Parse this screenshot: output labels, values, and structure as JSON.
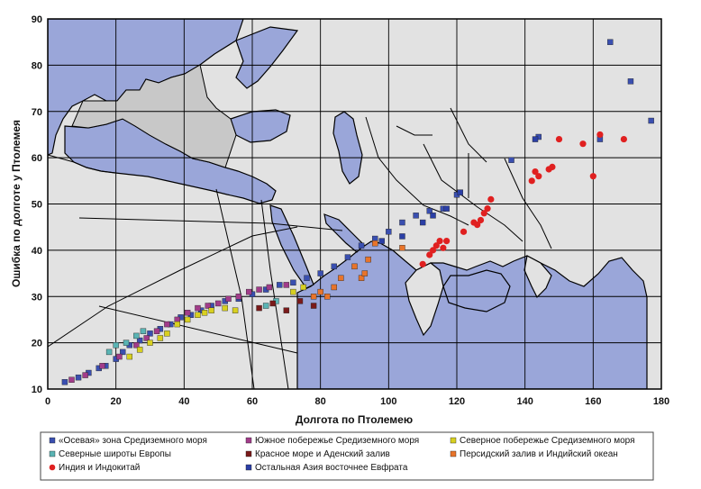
{
  "chart_data": {
    "type": "scatter",
    "title": "",
    "xlabel": "Долгота по Птолемею",
    "ylabel": "Ошибка по долготе у Птолемея",
    "xlim": [
      0,
      180
    ],
    "ylim": [
      10,
      90
    ],
    "xticks": [
      0,
      20,
      40,
      60,
      80,
      100,
      120,
      140,
      160,
      180
    ],
    "yticks": [
      10,
      20,
      30,
      40,
      50,
      60,
      70,
      80,
      90
    ],
    "grid": true,
    "legend_position": "bottom",
    "background": "map of the Mediterranean, Near East and Asia",
    "colors": {
      "land": "#e2e2e2",
      "land_shaded": "#c8c8c8",
      "water": "#9aa6d9",
      "grid": "#000000"
    },
    "series": [
      {
        "name": "«Осевая» зона Средиземного моря",
        "marker": "square",
        "color": "#3a4fb0",
        "points": [
          [
            5,
            11.5
          ],
          [
            9,
            12.5
          ],
          [
            12,
            13.5
          ],
          [
            15,
            14.5
          ],
          [
            17,
            15
          ],
          [
            20,
            16.5
          ],
          [
            22,
            18
          ],
          [
            24,
            19.5
          ],
          [
            27,
            20.5
          ],
          [
            30,
            22
          ],
          [
            33,
            23
          ],
          [
            36,
            24
          ],
          [
            39,
            25.5
          ],
          [
            42,
            26
          ],
          [
            45,
            27
          ],
          [
            48,
            28
          ],
          [
            52,
            29
          ],
          [
            56,
            29.5
          ],
          [
            60,
            30.5
          ],
          [
            64,
            31.5
          ],
          [
            68,
            32.5
          ],
          [
            72,
            33
          ],
          [
            76,
            34
          ],
          [
            80,
            35
          ],
          [
            84,
            36.5
          ],
          [
            88,
            38.5
          ],
          [
            92,
            41
          ],
          [
            96,
            42.5
          ],
          [
            100,
            44
          ],
          [
            104,
            46
          ],
          [
            108,
            47.5
          ],
          [
            112,
            48.5
          ],
          [
            116,
            49
          ],
          [
            120,
            52
          ],
          [
            136,
            59.5
          ],
          [
            144,
            64.5
          ],
          [
            162,
            64
          ],
          [
            165,
            85
          ],
          [
            171,
            76.5
          ],
          [
            177,
            68
          ]
        ]
      },
      {
        "name": "Южное побережье Средиземного моря",
        "marker": "square",
        "color": "#a23c8a",
        "points": [
          [
            7,
            12
          ],
          [
            11,
            13
          ],
          [
            16,
            15
          ],
          [
            21,
            17
          ],
          [
            26,
            19.5
          ],
          [
            29,
            21
          ],
          [
            32,
            22.5
          ],
          [
            35,
            24
          ],
          [
            38,
            25
          ],
          [
            41,
            26.5
          ],
          [
            44,
            27.5
          ],
          [
            47,
            28
          ],
          [
            50,
            28.5
          ],
          [
            53,
            29.5
          ],
          [
            56,
            30
          ],
          [
            59,
            31
          ],
          [
            62,
            31.5
          ],
          [
            65,
            32
          ],
          [
            70,
            32.5
          ]
        ]
      },
      {
        "name": "Северное побережье Средиземного моря",
        "marker": "square",
        "color": "#d8d020",
        "points": [
          [
            24,
            17
          ],
          [
            27,
            18.5
          ],
          [
            30,
            20
          ],
          [
            33,
            21
          ],
          [
            35,
            22
          ],
          [
            38,
            24
          ],
          [
            41,
            25
          ],
          [
            44,
            26
          ],
          [
            46,
            26.5
          ],
          [
            48,
            27
          ],
          [
            52,
            27.5
          ],
          [
            55,
            27
          ],
          [
            72,
            31
          ],
          [
            75,
            32
          ]
        ]
      },
      {
        "name": "Северные широты Европы",
        "marker": "square",
        "color": "#5ab4b4",
        "points": [
          [
            18,
            18
          ],
          [
            20,
            19.5
          ],
          [
            23,
            20
          ],
          [
            26,
            21.5
          ],
          [
            28,
            22.5
          ],
          [
            64,
            28
          ],
          [
            67,
            29
          ]
        ]
      },
      {
        "name": "Красное море и Аденский залив",
        "marker": "square",
        "color": "#7a1a1a",
        "points": [
          [
            62,
            27.5
          ],
          [
            66,
            28.5
          ],
          [
            70,
            27
          ],
          [
            74,
            29
          ],
          [
            78,
            28
          ]
        ]
      },
      {
        "name": "Персидский залив и Индийский океан",
        "marker": "square",
        "color": "#e8742a",
        "points": [
          [
            78,
            30
          ],
          [
            80,
            31
          ],
          [
            82,
            30
          ],
          [
            84,
            32
          ],
          [
            86,
            34
          ],
          [
            90,
            36.5
          ],
          [
            92,
            34
          ],
          [
            93,
            35
          ],
          [
            94,
            38
          ],
          [
            96,
            41.5
          ],
          [
            104,
            40.5
          ]
        ]
      },
      {
        "name": "Индия и Индокитай",
        "marker": "circle",
        "color": "#e02020",
        "points": [
          [
            110,
            37
          ],
          [
            112,
            39
          ],
          [
            113,
            40
          ],
          [
            114,
            41
          ],
          [
            115,
            42
          ],
          [
            116,
            40.5
          ],
          [
            117,
            42
          ],
          [
            122,
            44
          ],
          [
            125,
            46
          ],
          [
            126,
            45.5
          ],
          [
            127,
            46.5
          ],
          [
            128,
            48
          ],
          [
            129,
            49
          ],
          [
            130,
            51
          ],
          [
            142,
            55
          ],
          [
            143,
            57
          ],
          [
            144,
            56
          ],
          [
            147,
            57.5
          ],
          [
            148,
            58
          ],
          [
            150,
            64
          ],
          [
            157,
            63
          ],
          [
            160,
            56
          ],
          [
            162,
            65
          ],
          [
            169,
            64
          ]
        ]
      },
      {
        "name": "Остальная Азия восточнее Евфрата",
        "marker": "square",
        "color": "#2b3fa6",
        "points": [
          [
            98,
            42
          ],
          [
            104,
            43
          ],
          [
            110,
            46
          ],
          [
            113,
            47.5
          ],
          [
            117,
            49
          ],
          [
            121,
            52.5
          ],
          [
            143,
            64
          ]
        ]
      }
    ]
  }
}
